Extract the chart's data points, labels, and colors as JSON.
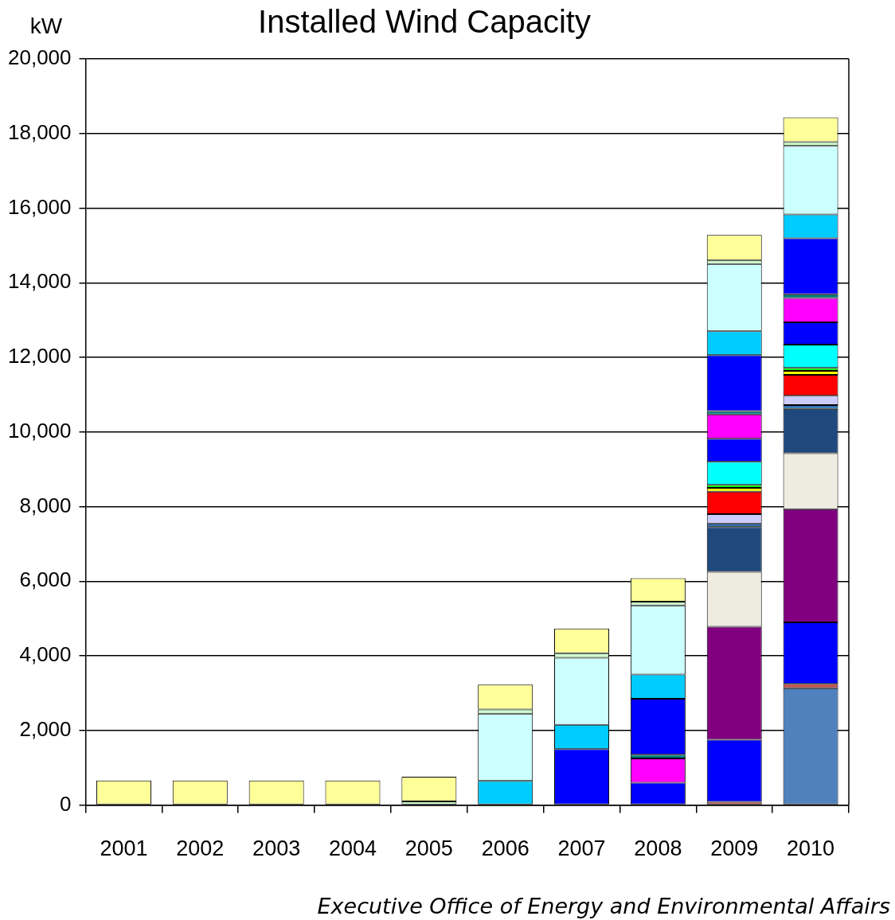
{
  "chart_data": {
    "type": "bar",
    "stacked": true,
    "title": "Installed Wind Capacity",
    "ylabel": "kW",
    "categories": [
      "2001",
      "2002",
      "2003",
      "2004",
      "2005",
      "2006",
      "2007",
      "2008",
      "2009",
      "2010"
    ],
    "ylim": [
      0,
      20000
    ],
    "yticks": [
      {
        "value": 0,
        "label": "0"
      },
      {
        "value": 2000,
        "label": "2,000"
      },
      {
        "value": 4000,
        "label": "4,000"
      },
      {
        "value": 6000,
        "label": "6,000"
      },
      {
        "value": 8000,
        "label": "8,000"
      },
      {
        "value": 10000,
        "label": "10,000"
      },
      {
        "value": 12000,
        "label": "12,000"
      },
      {
        "value": 14000,
        "label": "14,000"
      },
      {
        "value": 16000,
        "label": "16,000"
      },
      {
        "value": 18000,
        "label": "18,000"
      },
      {
        "value": 20000,
        "label": "20,000"
      }
    ],
    "grid": "y",
    "legend": false,
    "annotations": [
      "Executive Office of Energy and Environmental Affairs"
    ],
    "series": [
      {
        "color": "#4f81bd",
        "values": [
          null,
          null,
          null,
          null,
          null,
          null,
          null,
          null,
          null,
          3130
        ]
      },
      {
        "color": "#c0504d",
        "values": [
          null,
          null,
          null,
          null,
          null,
          null,
          null,
          null,
          90,
          120
        ]
      },
      {
        "color": "#0000ff",
        "values": [
          null,
          null,
          null,
          null,
          null,
          null,
          null,
          null,
          1660,
          1650
        ]
      },
      {
        "color": "#800080",
        "values": [
          null,
          null,
          null,
          null,
          null,
          null,
          null,
          null,
          3030,
          3030
        ]
      },
      {
        "color": "#eeece1",
        "values": [
          null,
          null,
          null,
          null,
          null,
          null,
          null,
          null,
          1470,
          1500
        ]
      },
      {
        "color": "#1f497d",
        "values": [
          null,
          null,
          null,
          null,
          null,
          null,
          null,
          null,
          1200,
          1190
        ]
      },
      {
        "color": "#2e75b6",
        "values": [
          null,
          null,
          null,
          null,
          null,
          null,
          null,
          null,
          100,
          100
        ]
      },
      {
        "color": "#ccccff",
        "values": [
          null,
          null,
          null,
          null,
          null,
          null,
          null,
          null,
          250,
          250
        ]
      },
      {
        "color": "#ff0000",
        "values": [
          null,
          null,
          null,
          null,
          null,
          null,
          null,
          null,
          600,
          560
        ]
      },
      {
        "color": "#ffff00",
        "values": [
          null,
          null,
          null,
          null,
          null,
          null,
          null,
          null,
          100,
          110
        ]
      },
      {
        "color": "#00ff00",
        "values": [
          null,
          null,
          null,
          null,
          null,
          null,
          null,
          null,
          80,
          80
        ]
      },
      {
        "color": "#00ffff",
        "values": [
          null,
          null,
          null,
          null,
          null,
          null,
          null,
          null,
          620,
          620
        ]
      },
      {
        "color": "#0000ff",
        "values": [
          null,
          null,
          null,
          null,
          null,
          null,
          null,
          600,
          620,
          600
        ]
      },
      {
        "color": "#ff00ff",
        "values": [
          null,
          null,
          null,
          null,
          null,
          null,
          null,
          650,
          650,
          650
        ]
      },
      {
        "color": "#008080",
        "values": [
          null,
          null,
          null,
          null,
          null,
          null,
          null,
          100,
          90,
          100
        ]
      },
      {
        "color": "#0000ff",
        "values": [
          null,
          null,
          null,
          null,
          null,
          null,
          1500,
          1500,
          1500,
          1500
        ]
      },
      {
        "color": "#00ccff",
        "values": [
          null,
          null,
          null,
          null,
          null,
          650,
          650,
          650,
          640,
          640
        ]
      },
      {
        "color": "#ccffff",
        "values": [
          null,
          null,
          null,
          null,
          null,
          1800,
          1800,
          1850,
          1800,
          1840
        ]
      },
      {
        "color": "#ccffcc",
        "values": [
          null,
          null,
          null,
          null,
          100,
          110,
          120,
          100,
          100,
          100
        ]
      },
      {
        "color": "#ffff99",
        "values": [
          660,
          660,
          660,
          660,
          660,
          670,
          660,
          630,
          680,
          660
        ]
      }
    ]
  }
}
